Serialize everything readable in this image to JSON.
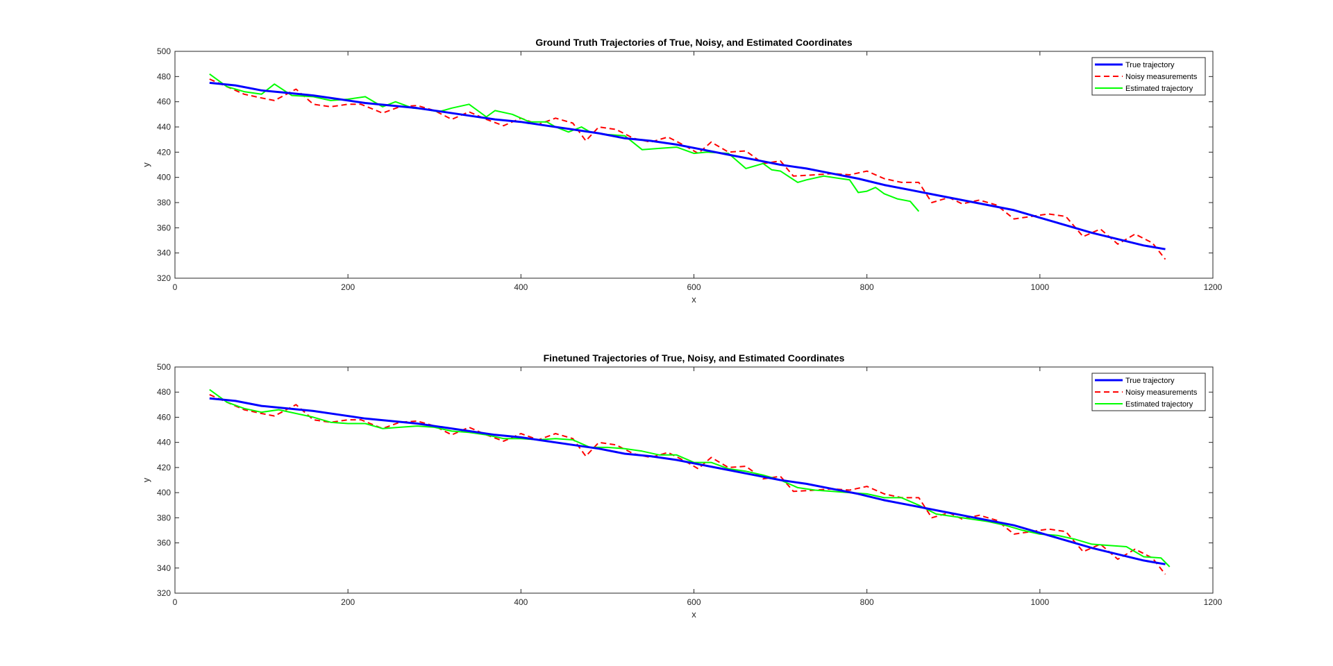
{
  "chart_data": [
    {
      "type": "line",
      "title": "Ground Truth Trajectories of True, Noisy, and Estimated Coordinates",
      "xlabel": "x",
      "ylabel": "y",
      "xlim": [
        0,
        1200
      ],
      "ylim": [
        320,
        500
      ],
      "xticks": [
        0,
        200,
        400,
        600,
        800,
        1000,
        1200
      ],
      "yticks": [
        320,
        340,
        360,
        380,
        400,
        420,
        440,
        460,
        480,
        500
      ],
      "grid": false,
      "legend_position": "top-right",
      "series": [
        {
          "name": "True trajectory",
          "color": "#0000ff",
          "style": "solid",
          "x": [
            40,
            70,
            100,
            130,
            160,
            190,
            220,
            250,
            280,
            310,
            340,
            370,
            400,
            430,
            460,
            490,
            520,
            550,
            580,
            610,
            640,
            670,
            700,
            730,
            760,
            790,
            820,
            850,
            880,
            910,
            940,
            970,
            1000,
            1030,
            1060,
            1090,
            1120,
            1145
          ],
          "y": [
            475,
            473,
            469,
            467,
            465,
            462,
            459,
            457,
            455,
            452,
            449,
            446,
            444,
            441,
            438,
            435,
            431,
            429,
            426,
            422,
            418,
            414,
            410,
            407,
            403,
            399,
            394,
            390,
            386,
            382,
            378,
            374,
            368,
            362,
            356,
            351,
            346,
            343
          ]
        },
        {
          "name": "Noisy measurements",
          "color": "#ff0000",
          "style": "dashed",
          "x": [
            40,
            60,
            80,
            100,
            115,
            140,
            160,
            180,
            200,
            215,
            240,
            260,
            280,
            300,
            320,
            340,
            360,
            380,
            400,
            420,
            440,
            460,
            475,
            490,
            510,
            530,
            550,
            570,
            590,
            605,
            620,
            640,
            660,
            680,
            700,
            715,
            740,
            760,
            780,
            800,
            820,
            840,
            860,
            875,
            895,
            910,
            930,
            950,
            970,
            990,
            1010,
            1030,
            1050,
            1070,
            1090,
            1110,
            1130,
            1145
          ],
          "y": [
            478,
            472,
            466,
            463,
            461,
            470,
            458,
            456,
            458,
            458,
            451,
            456,
            457,
            453,
            446,
            452,
            446,
            441,
            447,
            442,
            447,
            443,
            429,
            440,
            438,
            431,
            428,
            432,
            425,
            419,
            428,
            420,
            421,
            411,
            413,
            401,
            402,
            403,
            402,
            405,
            399,
            396,
            396,
            380,
            384,
            379,
            382,
            378,
            367,
            369,
            371,
            369,
            353,
            359,
            347,
            355,
            348,
            335
          ]
        },
        {
          "name": "Estimated trajectory",
          "color": "#00ff00",
          "style": "solid",
          "x": [
            40,
            60,
            80,
            100,
            115,
            135,
            160,
            180,
            200,
            220,
            240,
            255,
            275,
            290,
            305,
            320,
            340,
            360,
            370,
            390,
            410,
            430,
            440,
            455,
            470,
            480,
            500,
            520,
            540,
            560,
            580,
            600,
            615,
            640,
            660,
            680,
            690,
            700,
            720,
            730,
            750,
            770,
            780,
            790,
            800,
            810,
            820,
            835,
            850,
            860
          ],
          "y": [
            482,
            472,
            468,
            466,
            474,
            465,
            464,
            461,
            462,
            464,
            456,
            460,
            455,
            454,
            452,
            455,
            458,
            448,
            453,
            450,
            444,
            444,
            440,
            436,
            440,
            436,
            434,
            433,
            422,
            423,
            424,
            419,
            420,
            419,
            407,
            411,
            406,
            405,
            396,
            398,
            401,
            399,
            398,
            388,
            389,
            392,
            387,
            383,
            381,
            373
          ]
        }
      ]
    },
    {
      "type": "line",
      "title": "Finetuned Trajectories of True, Noisy, and Estimated Coordinates",
      "xlabel": "x",
      "ylabel": "y",
      "xlim": [
        0,
        1200
      ],
      "ylim": [
        320,
        500
      ],
      "xticks": [
        0,
        200,
        400,
        600,
        800,
        1000,
        1200
      ],
      "yticks": [
        320,
        340,
        360,
        380,
        400,
        420,
        440,
        460,
        480,
        500
      ],
      "grid": false,
      "legend_position": "top-right",
      "series": [
        {
          "name": "True trajectory",
          "color": "#0000ff",
          "style": "solid",
          "x": [
            40,
            70,
            100,
            130,
            160,
            190,
            220,
            250,
            280,
            310,
            340,
            370,
            400,
            430,
            460,
            490,
            520,
            550,
            580,
            610,
            640,
            670,
            700,
            730,
            760,
            790,
            820,
            850,
            880,
            910,
            940,
            970,
            1000,
            1030,
            1060,
            1090,
            1120,
            1145
          ],
          "y": [
            475,
            473,
            469,
            467,
            465,
            462,
            459,
            457,
            455,
            452,
            449,
            446,
            444,
            441,
            438,
            435,
            431,
            429,
            426,
            422,
            418,
            414,
            410,
            407,
            403,
            399,
            394,
            390,
            386,
            382,
            378,
            374,
            368,
            362,
            356,
            351,
            346,
            343
          ]
        },
        {
          "name": "Noisy measurements",
          "color": "#ff0000",
          "style": "dashed",
          "x": [
            40,
            60,
            80,
            100,
            115,
            140,
            160,
            180,
            200,
            215,
            240,
            260,
            280,
            300,
            320,
            340,
            360,
            380,
            400,
            420,
            440,
            460,
            475,
            490,
            510,
            530,
            550,
            570,
            590,
            605,
            620,
            640,
            660,
            680,
            700,
            715,
            740,
            760,
            780,
            800,
            820,
            840,
            860,
            875,
            895,
            910,
            930,
            950,
            970,
            990,
            1010,
            1030,
            1050,
            1070,
            1090,
            1110,
            1130,
            1145
          ],
          "y": [
            478,
            472,
            466,
            463,
            461,
            470,
            458,
            456,
            458,
            458,
            451,
            456,
            457,
            453,
            446,
            452,
            446,
            441,
            447,
            442,
            447,
            443,
            429,
            440,
            438,
            431,
            428,
            432,
            425,
            419,
            428,
            420,
            421,
            411,
            413,
            401,
            402,
            403,
            402,
            405,
            399,
            396,
            396,
            380,
            384,
            379,
            382,
            378,
            367,
            369,
            371,
            369,
            353,
            359,
            347,
            355,
            348,
            335
          ]
        },
        {
          "name": "Estimated trajectory",
          "color": "#00ff00",
          "style": "solid",
          "x": [
            40,
            60,
            80,
            100,
            120,
            140,
            160,
            180,
            200,
            220,
            240,
            260,
            280,
            300,
            320,
            340,
            360,
            380,
            400,
            420,
            440,
            460,
            480,
            500,
            520,
            540,
            560,
            580,
            600,
            620,
            640,
            660,
            680,
            700,
            720,
            740,
            760,
            780,
            800,
            820,
            840,
            860,
            880,
            900,
            920,
            940,
            960,
            980,
            1000,
            1020,
            1040,
            1060,
            1080,
            1100,
            1120,
            1140,
            1150
          ],
          "y": [
            482,
            472,
            467,
            464,
            466,
            463,
            460,
            456,
            455,
            455,
            451,
            452,
            453,
            452,
            449,
            448,
            446,
            443,
            443,
            442,
            443,
            442,
            436,
            436,
            435,
            433,
            430,
            430,
            424,
            424,
            419,
            417,
            414,
            410,
            404,
            402,
            401,
            400,
            399,
            396,
            396,
            390,
            383,
            381,
            379,
            377,
            374,
            370,
            367,
            366,
            363,
            359,
            358,
            357,
            349,
            348,
            341
          ]
        }
      ]
    }
  ]
}
